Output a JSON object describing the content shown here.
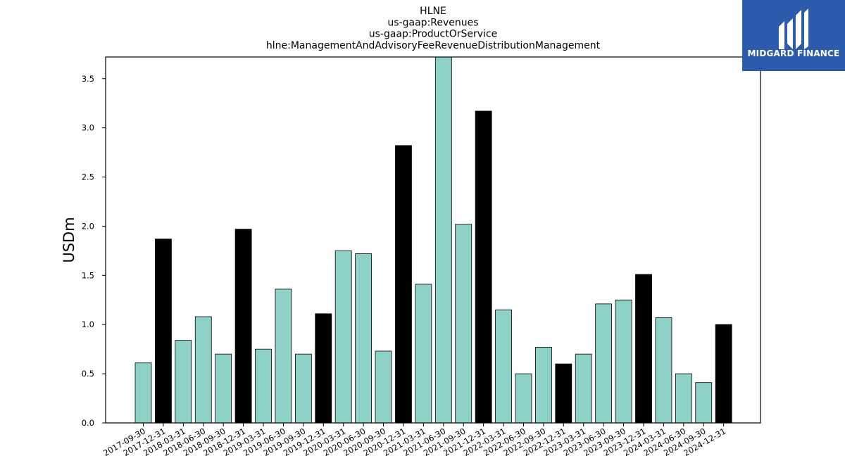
{
  "chart_data": {
    "type": "bar",
    "title_lines": [
      "HLNE",
      "us-gaap:Revenues",
      "us-gaap:ProductOrService",
      "hlne:ManagementAndAdvisoryFeeRevenueDistributionManagement"
    ],
    "ylabel": "USDm",
    "xlabel": "",
    "ylim": [
      0,
      3.72
    ],
    "yticks": [
      "0.0",
      "0.5",
      "1.0",
      "1.5",
      "2.0",
      "2.5",
      "3.0",
      "3.5"
    ],
    "ytick_values": [
      0,
      0.5,
      1.0,
      1.5,
      2.0,
      2.5,
      3.0,
      3.5
    ],
    "categories": [
      "2017-09-30",
      "2017-12-31",
      "2018-03-31",
      "2018-06-30",
      "2018-09-30",
      "2018-12-31",
      "2019-03-31",
      "2019-06-30",
      "2019-09-30",
      "2019-12-31",
      "2020-03-31",
      "2020-06-30",
      "2020-09-30",
      "2020-12-31",
      "2021-03-31",
      "2021-06-30",
      "2021-09-30",
      "2021-12-31",
      "2022-03-31",
      "2022-06-30",
      "2022-09-30",
      "2022-12-31",
      "2023-03-31",
      "2023-06-30",
      "2023-09-30",
      "2023-12-31",
      "2024-03-31",
      "2024-06-30",
      "2024-09-30",
      "2024-12-31"
    ],
    "values": [
      0.61,
      1.87,
      0.84,
      1.08,
      0.7,
      1.97,
      0.75,
      1.36,
      0.7,
      1.11,
      1.75,
      1.72,
      0.73,
      2.82,
      1.41,
      3.8,
      2.02,
      3.17,
      1.15,
      0.5,
      0.77,
      0.6,
      0.7,
      1.21,
      1.25,
      1.51,
      1.07,
      0.5,
      0.41,
      1.0
    ],
    "highlight": [
      false,
      true,
      false,
      false,
      false,
      true,
      false,
      false,
      false,
      true,
      false,
      false,
      false,
      true,
      false,
      false,
      false,
      true,
      false,
      false,
      false,
      true,
      false,
      false,
      false,
      true,
      false,
      false,
      false,
      true
    ],
    "colors": {
      "regular": "#8ed1c6",
      "highlight": "#000000",
      "edge": "#000000"
    },
    "grid": false,
    "legend": "none"
  },
  "brand": {
    "name": "MIDGARD FINANCE",
    "bg_color": "#2d5cad",
    "icon": "midgard-logo-icon"
  }
}
